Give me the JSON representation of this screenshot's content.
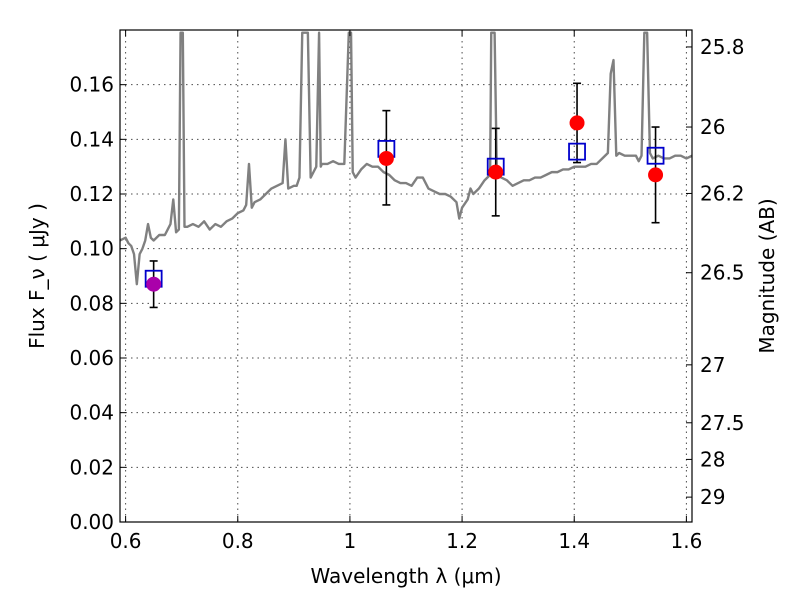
{
  "chart_data": {
    "type": "scatter",
    "xlabel": "Wavelength  λ (μm)",
    "ylabel": "Flux  F_ν  ( μJy )",
    "y2label": "Magnitude (AB)",
    "xlim": [
      0.59,
      1.61
    ],
    "ylim": [
      0.0,
      0.18
    ],
    "x_ticks": [
      0.6,
      0.8,
      1.0,
      1.2,
      1.4,
      1.6
    ],
    "x_tick_labels": [
      "0.6",
      "0.8",
      "1",
      "1.2",
      "1.4",
      "1.6"
    ],
    "y_ticks": [
      0.0,
      0.02,
      0.04,
      0.06,
      0.08,
      0.1,
      0.12,
      0.14,
      0.16
    ],
    "y_tick_labels": [
      "0.00",
      "0.02",
      "0.04",
      "0.06",
      "0.08",
      "0.10",
      "0.12",
      "0.14",
      "0.16"
    ],
    "y2_ticks": [
      {
        "label": "25.8",
        "flux": 0.1738
      },
      {
        "label": "26",
        "flux": 0.1445
      },
      {
        "label": "26.2",
        "flux": 0.1202
      },
      {
        "label": "26.5",
        "flux": 0.0912
      },
      {
        "label": "27",
        "flux": 0.0575
      },
      {
        "label": "27.5",
        "flux": 0.0363
      },
      {
        "label": "28",
        "flux": 0.0229
      },
      {
        "label": "29",
        "flux": 0.0091
      }
    ],
    "grid": true,
    "colors": {
      "spectrum": "#808080",
      "observed": "#ff0000",
      "model": "#0000cc",
      "overlap": "#aa00aa",
      "errorbar": "#000000"
    },
    "series": [
      {
        "kind": "line",
        "values": [
          [
            0.59,
            0.103
          ],
          [
            0.6,
            0.104
          ],
          [
            0.605,
            0.102
          ],
          [
            0.61,
            0.101
          ],
          [
            0.615,
            0.098
          ],
          [
            0.62,
            0.087
          ],
          [
            0.625,
            0.098
          ],
          [
            0.63,
            0.1
          ],
          [
            0.635,
            0.103
          ],
          [
            0.64,
            0.109
          ],
          [
            0.645,
            0.104
          ],
          [
            0.65,
            0.103
          ],
          [
            0.66,
            0.105
          ],
          [
            0.67,
            0.105
          ],
          [
            0.675,
            0.107
          ],
          [
            0.68,
            0.109
          ],
          [
            0.685,
            0.118
          ],
          [
            0.69,
            0.106
          ],
          [
            0.695,
            0.107
          ],
          [
            0.698,
            0.179
          ],
          [
            0.702,
            0.179
          ],
          [
            0.705,
            0.108
          ],
          [
            0.71,
            0.108
          ],
          [
            0.72,
            0.109
          ],
          [
            0.73,
            0.108
          ],
          [
            0.74,
            0.11
          ],
          [
            0.75,
            0.107
          ],
          [
            0.76,
            0.109
          ],
          [
            0.77,
            0.108
          ],
          [
            0.78,
            0.11
          ],
          [
            0.79,
            0.111
          ],
          [
            0.8,
            0.113
          ],
          [
            0.81,
            0.114
          ],
          [
            0.815,
            0.116
          ],
          [
            0.82,
            0.131
          ],
          [
            0.825,
            0.115
          ],
          [
            0.83,
            0.117
          ],
          [
            0.84,
            0.118
          ],
          [
            0.85,
            0.12
          ],
          [
            0.86,
            0.122
          ],
          [
            0.87,
            0.123
          ],
          [
            0.88,
            0.124
          ],
          [
            0.885,
            0.14
          ],
          [
            0.89,
            0.122
          ],
          [
            0.9,
            0.123
          ],
          [
            0.905,
            0.123
          ],
          [
            0.91,
            0.126
          ],
          [
            0.915,
            0.179
          ],
          [
            0.925,
            0.179
          ],
          [
            0.93,
            0.126
          ],
          [
            0.935,
            0.128
          ],
          [
            0.94,
            0.13
          ],
          [
            0.945,
            0.179
          ],
          [
            0.948,
            0.13
          ],
          [
            0.95,
            0.131
          ],
          [
            0.96,
            0.131
          ],
          [
            0.97,
            0.132
          ],
          [
            0.98,
            0.131
          ],
          [
            0.99,
            0.131
          ],
          [
            0.998,
            0.179
          ],
          [
            1.002,
            0.179
          ],
          [
            1.005,
            0.128
          ],
          [
            1.01,
            0.126
          ],
          [
            1.02,
            0.129
          ],
          [
            1.03,
            0.131
          ],
          [
            1.04,
            0.13
          ],
          [
            1.05,
            0.13
          ],
          [
            1.06,
            0.128
          ],
          [
            1.07,
            0.127
          ],
          [
            1.08,
            0.125
          ],
          [
            1.09,
            0.124
          ],
          [
            1.1,
            0.124
          ],
          [
            1.11,
            0.123
          ],
          [
            1.12,
            0.126
          ],
          [
            1.13,
            0.126
          ],
          [
            1.14,
            0.122
          ],
          [
            1.15,
            0.121
          ],
          [
            1.16,
            0.12
          ],
          [
            1.17,
            0.12
          ],
          [
            1.18,
            0.119
          ],
          [
            1.19,
            0.117
          ],
          [
            1.195,
            0.111
          ],
          [
            1.2,
            0.115
          ],
          [
            1.21,
            0.118
          ],
          [
            1.215,
            0.122
          ],
          [
            1.22,
            0.12
          ],
          [
            1.23,
            0.122
          ],
          [
            1.24,
            0.125
          ],
          [
            1.245,
            0.126
          ],
          [
            1.25,
            0.127
          ],
          [
            1.252,
            0.179
          ],
          [
            1.258,
            0.179
          ],
          [
            1.262,
            0.127
          ],
          [
            1.27,
            0.126
          ],
          [
            1.28,
            0.125
          ],
          [
            1.29,
            0.123
          ],
          [
            1.3,
            0.124
          ],
          [
            1.31,
            0.125
          ],
          [
            1.32,
            0.125
          ],
          [
            1.33,
            0.126
          ],
          [
            1.34,
            0.126
          ],
          [
            1.35,
            0.127
          ],
          [
            1.36,
            0.128
          ],
          [
            1.37,
            0.128
          ],
          [
            1.38,
            0.129
          ],
          [
            1.39,
            0.129
          ],
          [
            1.4,
            0.13
          ],
          [
            1.41,
            0.13
          ],
          [
            1.42,
            0.13
          ],
          [
            1.43,
            0.131
          ],
          [
            1.44,
            0.131
          ],
          [
            1.45,
            0.133
          ],
          [
            1.46,
            0.135
          ],
          [
            1.465,
            0.164
          ],
          [
            1.47,
            0.169
          ],
          [
            1.475,
            0.134
          ],
          [
            1.48,
            0.135
          ],
          [
            1.49,
            0.134
          ],
          [
            1.5,
            0.134
          ],
          [
            1.51,
            0.134
          ],
          [
            1.515,
            0.132
          ],
          [
            1.52,
            0.134
          ],
          [
            1.525,
            0.179
          ],
          [
            1.53,
            0.179
          ],
          [
            1.535,
            0.135
          ],
          [
            1.54,
            0.133
          ],
          [
            1.55,
            0.134
          ],
          [
            1.56,
            0.133
          ],
          [
            1.57,
            0.133
          ],
          [
            1.58,
            0.134
          ],
          [
            1.59,
            0.134
          ],
          [
            1.6,
            0.133
          ],
          [
            1.61,
            0.134
          ]
        ]
      },
      {
        "kind": "observed",
        "points": [
          {
            "x": 0.65,
            "y": 0.087,
            "yerr_low": 0.0085,
            "yerr_high": 0.0085
          },
          {
            "x": 1.065,
            "y": 0.133,
            "yerr_low": 0.017,
            "yerr_high": 0.0175
          },
          {
            "x": 1.26,
            "y": 0.128,
            "yerr_low": 0.016,
            "yerr_high": 0.016
          },
          {
            "x": 1.405,
            "y": 0.146,
            "yerr_low": 0.0145,
            "yerr_high": 0.0145
          },
          {
            "x": 1.545,
            "y": 0.127,
            "yerr_low": 0.0175,
            "yerr_high": 0.0175
          }
        ]
      },
      {
        "kind": "model",
        "points": [
          {
            "x": 0.65,
            "y": 0.089
          },
          {
            "x": 1.065,
            "y": 0.1365
          },
          {
            "x": 1.26,
            "y": 0.13
          },
          {
            "x": 1.405,
            "y": 0.1355
          },
          {
            "x": 1.545,
            "y": 0.134
          }
        ]
      }
    ]
  }
}
